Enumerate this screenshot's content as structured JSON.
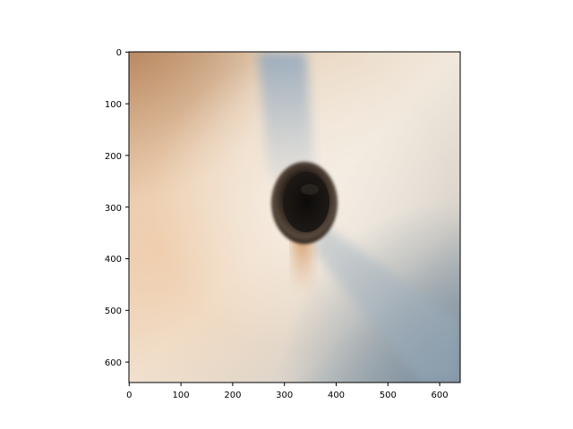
{
  "image_plot": {
    "x_ticks": [
      "0",
      "100",
      "200",
      "300",
      "400",
      "500",
      "600"
    ],
    "y_ticks": [
      "0",
      "100",
      "200",
      "300",
      "400",
      "500",
      "600"
    ],
    "x_range": [
      0,
      640
    ],
    "y_range": [
      0,
      640
    ],
    "y_axis_direction": "top-to-bottom",
    "colors": {
      "background_center": "#f0e6d8",
      "background_left_warm": "#e9c8a6",
      "background_bottom_right_cool": "#8a9ba8",
      "shadow_blue": "#9aaec2",
      "object_dark": "#1a1512",
      "object_rim": "#4a3d33"
    }
  }
}
